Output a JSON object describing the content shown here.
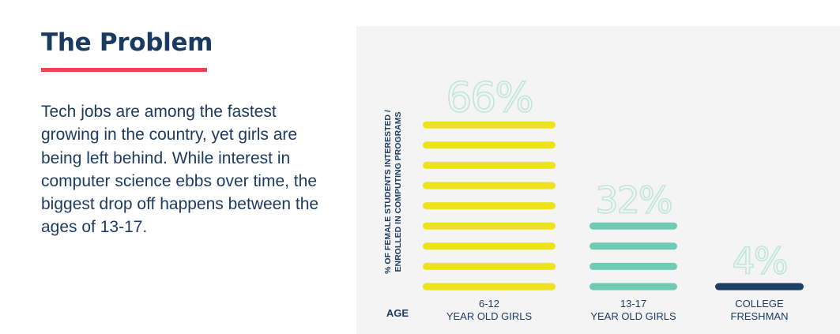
{
  "left": {
    "heading": "The Problem",
    "body": "Tech jobs are among the fastest growing in the country, yet girls are being left behind. While interest in computer science ebbs over time, the biggest drop off happens between the ages of 13-17."
  },
  "chart_data": {
    "type": "bar",
    "ylabel": "% OF FEMALE STUDENTS INTERESTED / ENROLLED IN COMPUTING PROGRAMS",
    "xlabel": "AGE",
    "categories": [
      {
        "line1": "6-12",
        "line2": "YEAR OLD GIRLS"
      },
      {
        "line1": "13-17",
        "line2": "YEAR OLD GIRLS"
      },
      {
        "line1": "COLLEGE",
        "line2": "FRESHMAN"
      }
    ],
    "values": [
      66,
      32,
      4
    ],
    "value_labels": [
      "66%",
      "32%",
      "4%"
    ],
    "colors": [
      "#ece31e",
      "#6fcbb3",
      "#1c3f63"
    ],
    "label_outline_color": "#bfe6da",
    "grid": false,
    "legend": "none"
  }
}
